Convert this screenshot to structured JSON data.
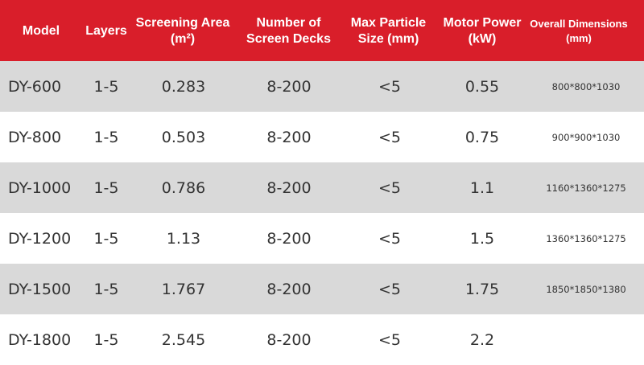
{
  "table": {
    "headers": [
      {
        "line1": "Model",
        "line2": ""
      },
      {
        "line1": "Layers",
        "line2": ""
      },
      {
        "line1": "Screening Area",
        "line2": "(m²)"
      },
      {
        "line1": "Number of",
        "line2": "Screen Decks"
      },
      {
        "line1": "Max Particle",
        "line2": "Size (mm)"
      },
      {
        "line1": "Motor Power",
        "line2": "(kW)"
      },
      {
        "line1": "Overall Dimensions",
        "line2": "(mm)"
      }
    ],
    "rows": [
      {
        "model": "DY-600",
        "layers": "1-5",
        "area": "0.283",
        "decks": "8-200",
        "particle": "<5",
        "power": "0.55",
        "dims": "800*800*1030"
      },
      {
        "model": "DY-800",
        "layers": "1-5",
        "area": "0.503",
        "decks": "8-200",
        "particle": "<5",
        "power": "0.75",
        "dims": "900*900*1030"
      },
      {
        "model": "DY-1000",
        "layers": "1-5",
        "area": "0.786",
        "decks": "8-200",
        "particle": "<5",
        "power": "1.1",
        "dims": "1160*1360*1275"
      },
      {
        "model": "DY-1200",
        "layers": "1-5",
        "area": "1.13",
        "decks": "8-200",
        "particle": "<5",
        "power": "1.5",
        "dims": "1360*1360*1275"
      },
      {
        "model": "DY-1500",
        "layers": "1-5",
        "area": "1.767",
        "decks": "8-200",
        "particle": "<5",
        "power": "1.75",
        "dims": "1850*1850*1380"
      },
      {
        "model": "DY-1800",
        "layers": "1-5",
        "area": "2.545",
        "decks": "8-200",
        "particle": "<5",
        "power": "2.2",
        "dims": ""
      }
    ]
  },
  "colors": {
    "header_bg": "#d91e2a",
    "shaded_row_bg": "#d9d9d9",
    "plain_row_bg": "#ffffff"
  }
}
